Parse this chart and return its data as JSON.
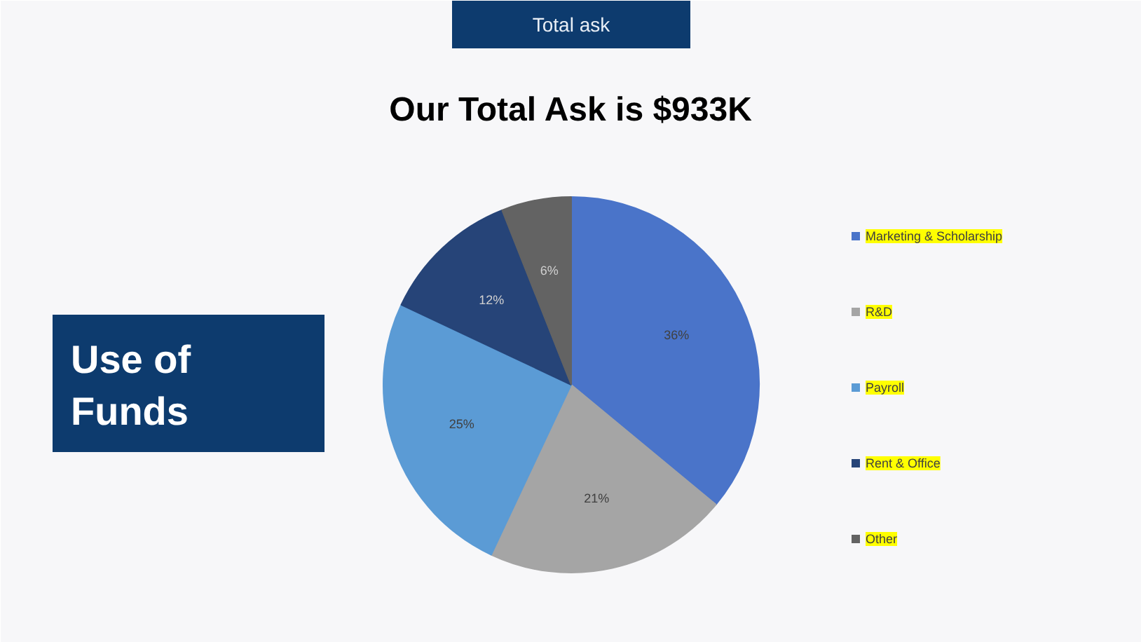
{
  "chart_data": {
    "type": "pie",
    "title": "Our Total Ask is $933K",
    "subtitle": "Use of Funds",
    "annotations": [
      "Total ask"
    ],
    "categories": [
      "Marketing & Scholarship",
      "R&D",
      "Payroll",
      "Rent & Office",
      "Other"
    ],
    "values": [
      36,
      21,
      25,
      12,
      6
    ],
    "colors": [
      "#4a74c9",
      "#a5a5a5",
      "#5b9bd5",
      "#264478",
      "#636363"
    ],
    "value_labels": [
      "36%",
      "21%",
      "25%",
      "12%",
      "6%"
    ],
    "legend": "right"
  }
}
